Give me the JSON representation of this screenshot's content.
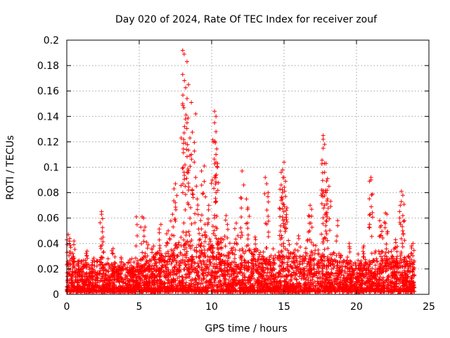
{
  "chart_data": {
    "type": "scatter",
    "title": "Day 020 of 2024, Rate Of TEC Index for receiver zouf",
    "xlabel": "GPS time / hours",
    "ylabel": "ROTI / TECUs",
    "xlim": [
      0,
      25
    ],
    "ylim": [
      0,
      0.2
    ],
    "xticks": [
      0,
      5,
      10,
      15,
      20,
      25
    ],
    "yticks": [
      0,
      0.02,
      0.04,
      0.06,
      0.08,
      0.1,
      0.12,
      0.14,
      0.16,
      0.18,
      0.2
    ],
    "xtick_labels": [
      "0",
      "5",
      "10",
      "15",
      "20",
      "25"
    ],
    "ytick_labels": [
      "0",
      "0.02",
      "0.04",
      "0.06",
      "0.08",
      "0.1",
      "0.12",
      "0.14",
      "0.16",
      "0.18",
      "0.2"
    ],
    "grid": true,
    "marker": "+",
    "color": "#ff0000",
    "x_range_observed": [
      0,
      24
    ],
    "peaks": [
      {
        "x": 8.0,
        "y": 0.192
      },
      {
        "x": 8.1,
        "y": 0.189
      },
      {
        "x": 8.3,
        "y": 0.183
      },
      {
        "x": 8.0,
        "y": 0.173
      },
      {
        "x": 8.4,
        "y": 0.165
      },
      {
        "x": 8.3,
        "y": 0.154
      },
      {
        "x": 8.0,
        "y": 0.15
      },
      {
        "x": 8.6,
        "y": 0.151
      },
      {
        "x": 8.9,
        "y": 0.142
      },
      {
        "x": 8.3,
        "y": 0.135
      },
      {
        "x": 8.1,
        "y": 0.127
      },
      {
        "x": 8.5,
        "y": 0.123
      },
      {
        "x": 8.2,
        "y": 0.119
      },
      {
        "x": 8.6,
        "y": 0.11
      },
      {
        "x": 8.8,
        "y": 0.104
      },
      {
        "x": 9.5,
        "y": 0.101
      },
      {
        "x": 9.3,
        "y": 0.097
      },
      {
        "x": 7.5,
        "y": 0.087
      },
      {
        "x": 7.4,
        "y": 0.083
      },
      {
        "x": 10.2,
        "y": 0.144
      },
      {
        "x": 10.3,
        "y": 0.14
      },
      {
        "x": 10.2,
        "y": 0.135
      },
      {
        "x": 10.3,
        "y": 0.128
      },
      {
        "x": 10.1,
        "y": 0.12
      },
      {
        "x": 10.3,
        "y": 0.11
      },
      {
        "x": 10.4,
        "y": 0.1
      },
      {
        "x": 10.2,
        "y": 0.092
      },
      {
        "x": 12.1,
        "y": 0.097
      },
      {
        "x": 12.0,
        "y": 0.076
      },
      {
        "x": 12.4,
        "y": 0.075
      },
      {
        "x": 12.5,
        "y": 0.068
      },
      {
        "x": 14.8,
        "y": 0.096
      },
      {
        "x": 15.0,
        "y": 0.104
      },
      {
        "x": 14.9,
        "y": 0.098
      },
      {
        "x": 15.0,
        "y": 0.092
      },
      {
        "x": 15.1,
        "y": 0.089
      },
      {
        "x": 14.8,
        "y": 0.086
      },
      {
        "x": 14.9,
        "y": 0.08
      },
      {
        "x": 15.1,
        "y": 0.077
      },
      {
        "x": 14.8,
        "y": 0.074
      },
      {
        "x": 15.2,
        "y": 0.068
      },
      {
        "x": 13.7,
        "y": 0.092
      },
      {
        "x": 13.8,
        "y": 0.087
      },
      {
        "x": 13.9,
        "y": 0.08
      },
      {
        "x": 17.7,
        "y": 0.125
      },
      {
        "x": 17.7,
        "y": 0.122
      },
      {
        "x": 17.8,
        "y": 0.118
      },
      {
        "x": 17.7,
        "y": 0.115
      },
      {
        "x": 17.9,
        "y": 0.103
      },
      {
        "x": 17.8,
        "y": 0.096
      },
      {
        "x": 18.0,
        "y": 0.091
      },
      {
        "x": 18.1,
        "y": 0.085
      },
      {
        "x": 17.9,
        "y": 0.08
      },
      {
        "x": 18.0,
        "y": 0.075
      },
      {
        "x": 17.8,
        "y": 0.07
      },
      {
        "x": 16.8,
        "y": 0.07
      },
      {
        "x": 16.9,
        "y": 0.067
      },
      {
        "x": 16.7,
        "y": 0.062
      },
      {
        "x": 18.7,
        "y": 0.058
      },
      {
        "x": 21.0,
        "y": 0.092
      },
      {
        "x": 21.0,
        "y": 0.09
      },
      {
        "x": 20.9,
        "y": 0.089
      },
      {
        "x": 23.1,
        "y": 0.081
      },
      {
        "x": 23.2,
        "y": 0.078
      },
      {
        "x": 23.1,
        "y": 0.073
      },
      {
        "x": 23.2,
        "y": 0.062
      },
      {
        "x": 22.0,
        "y": 0.064
      },
      {
        "x": 22.1,
        "y": 0.063
      },
      {
        "x": 21.6,
        "y": 0.058
      },
      {
        "x": 21.7,
        "y": 0.054
      },
      {
        "x": 2.4,
        "y": 0.065
      },
      {
        "x": 2.4,
        "y": 0.063
      },
      {
        "x": 4.8,
        "y": 0.061
      },
      {
        "x": 5.2,
        "y": 0.061
      },
      {
        "x": 5.3,
        "y": 0.06
      },
      {
        "x": 6.5,
        "y": 0.055
      },
      {
        "x": 7.3,
        "y": 0.063
      },
      {
        "x": 7.0,
        "y": 0.05
      },
      {
        "x": 9.0,
        "y": 0.075
      },
      {
        "x": 9.8,
        "y": 0.07
      },
      {
        "x": 11.0,
        "y": 0.062
      },
      {
        "x": 11.7,
        "y": 0.056
      },
      {
        "x": 0.1,
        "y": 0.047
      },
      {
        "x": 0.2,
        "y": 0.044
      },
      {
        "x": 0.5,
        "y": 0.042
      },
      {
        "x": 1.4,
        "y": 0.034
      },
      {
        "x": 3.2,
        "y": 0.036
      },
      {
        "x": 2.5,
        "y": 0.045
      },
      {
        "x": 5.5,
        "y": 0.041
      },
      {
        "x": 6.0,
        "y": 0.038
      },
      {
        "x": 13.0,
        "y": 0.045
      },
      {
        "x": 16.0,
        "y": 0.046
      },
      {
        "x": 19.5,
        "y": 0.04
      },
      {
        "x": 20.5,
        "y": 0.038
      },
      {
        "x": 22.7,
        "y": 0.043
      },
      {
        "x": 23.9,
        "y": 0.04
      }
    ],
    "baseline": {
      "description_band_low": 0.002,
      "typical_envelope": [
        [
          0,
          0.03
        ],
        [
          1,
          0.025
        ],
        [
          2,
          0.026
        ],
        [
          3,
          0.027
        ],
        [
          4,
          0.025
        ],
        [
          5,
          0.026
        ],
        [
          6,
          0.03
        ],
        [
          7,
          0.036
        ],
        [
          8,
          0.045
        ],
        [
          9,
          0.048
        ],
        [
          10,
          0.046
        ],
        [
          11,
          0.038
        ],
        [
          12,
          0.034
        ],
        [
          13,
          0.032
        ],
        [
          14,
          0.031
        ],
        [
          15,
          0.035
        ],
        [
          16,
          0.032
        ],
        [
          17,
          0.033
        ],
        [
          18,
          0.032
        ],
        [
          19,
          0.029
        ],
        [
          20,
          0.028
        ],
        [
          21,
          0.029
        ],
        [
          22,
          0.032
        ],
        [
          23,
          0.031
        ],
        [
          24,
          0.03
        ]
      ]
    }
  }
}
